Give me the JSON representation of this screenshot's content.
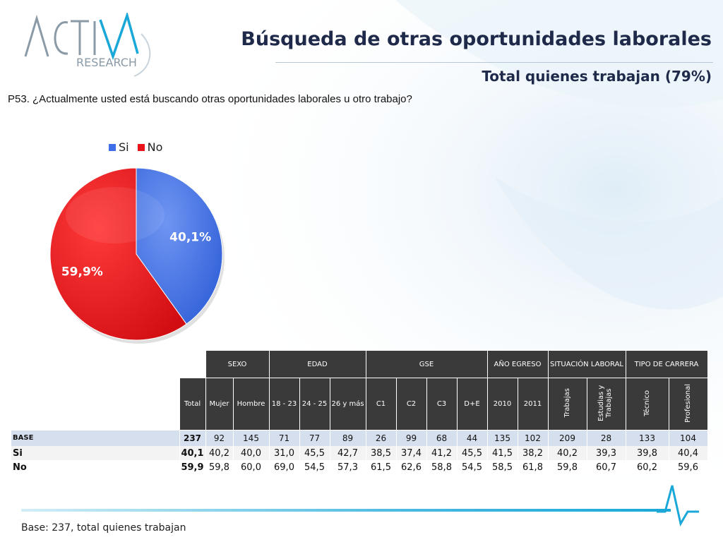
{
  "header": {
    "title": "Búsqueda de otras oportunidades laborales",
    "subtitle": "Total quienes trabajan (79%)",
    "logo_text": "ACTIVA RESEARCH"
  },
  "question": "P53. ¿Actualmente usted está buscando otras oportunidades laborales u otro trabajo?",
  "chart_data": {
    "type": "pie",
    "categories": [
      "Si",
      "No"
    ],
    "values": [
      40.1,
      59.9
    ],
    "labels": [
      "40,1%",
      "59,9%"
    ],
    "colors": [
      "#3f6fe8",
      "#e8141a"
    ],
    "legend_position": "top"
  },
  "table": {
    "groups": [
      {
        "label": "SEXO",
        "span": 2
      },
      {
        "label": "EDAD",
        "span": 3
      },
      {
        "label": "GSE",
        "span": 4
      },
      {
        "label": "AÑO EGRESO",
        "span": 2
      },
      {
        "label": "SITUACIÓN LABORAL",
        "span": 2
      },
      {
        "label": "TIPO DE CARRERA",
        "span": 2
      }
    ],
    "columns": [
      "Total",
      "Mujer",
      "Hombre",
      "18 - 23",
      "24 - 25",
      "26 y más",
      "C1",
      "C2",
      "C3",
      "D+E",
      "2010",
      "2011",
      "Trabajas",
      "Estudias y Trabajas",
      "Técnico",
      "Profesional"
    ],
    "rows": [
      {
        "label": "BASE",
        "values": [
          "237",
          "92",
          "145",
          "71",
          "77",
          "89",
          "26",
          "99",
          "68",
          "44",
          "135",
          "102",
          "209",
          "28",
          "133",
          "104"
        ]
      },
      {
        "label": "Si",
        "values": [
          "40,1",
          "40,2",
          "40,0",
          "31,0",
          "45,5",
          "42,7",
          "38,5",
          "37,4",
          "41,2",
          "45,5",
          "41,5",
          "38,2",
          "40,2",
          "39,3",
          "39,8",
          "40,4"
        ]
      },
      {
        "label": "No",
        "values": [
          "59,9",
          "59,8",
          "60,0",
          "69,0",
          "54,5",
          "57,3",
          "61,5",
          "62,6",
          "58,8",
          "54,5",
          "58,5",
          "61,8",
          "59,8",
          "60,7",
          "60,2",
          "59,6"
        ]
      }
    ]
  },
  "footer": "Base: 237, total quienes trabajan"
}
